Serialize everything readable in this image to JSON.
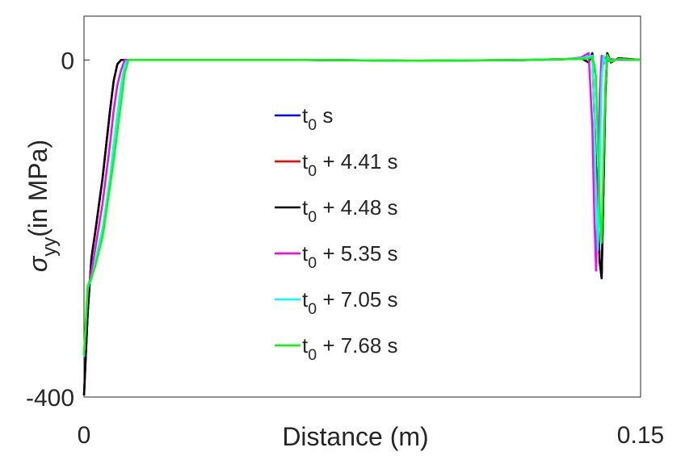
{
  "chart_data": {
    "type": "line",
    "xlabel": "Distance (m)",
    "ylabel": "σyy(in MPa)",
    "xlim": [
      0,
      0.15
    ],
    "xticks": [
      0,
      0.15
    ],
    "ylim": [
      -400,
      52
    ],
    "yticks": [
      -400,
      0
    ],
    "x": [
      0,
      0.001,
      0.002,
      0.003,
      0.005,
      0.007,
      0.008,
      0.009,
      0.01,
      0.011,
      0.012,
      0.013,
      0.03,
      0.06,
      0.09,
      0.12,
      0.13,
      0.134,
      0.136,
      0.137,
      0.1375,
      0.138,
      0.1385,
      0.139,
      0.1395,
      0.14,
      0.1405,
      0.141,
      0.142,
      0.144,
      0.15
    ],
    "series": [
      {
        "name": "t0 s",
        "color": "#0000ff",
        "values": [
          -398,
          -300,
          -235,
          -205,
          -140,
          -60,
          -25,
          -5,
          0,
          0,
          0,
          0,
          0,
          0,
          -1,
          0,
          1,
          2,
          -3,
          8,
          -60,
          -130,
          -190,
          -240,
          -259,
          -150,
          -40,
          8,
          -3,
          2,
          0
        ]
      },
      {
        "name": "t0 + 4.41 s",
        "color": "#ff0000",
        "values": [
          -398,
          -300,
          -235,
          -205,
          -140,
          -60,
          -25,
          -5,
          0,
          0,
          0,
          0,
          0,
          0,
          -1,
          0,
          1,
          2,
          -3,
          8,
          -60,
          -130,
          -190,
          -240,
          -259,
          -150,
          -40,
          8,
          -3,
          2,
          0
        ]
      },
      {
        "name": "t0 + 4.48 s",
        "color": "#000000",
        "values": [
          -398,
          -300,
          -235,
          -205,
          -140,
          -60,
          -25,
          -5,
          0,
          0,
          0,
          0,
          0,
          0,
          -1,
          0,
          1,
          2,
          -3,
          8,
          -60,
          -130,
          -190,
          -240,
          -259,
          -150,
          -40,
          8,
          -3,
          2,
          0
        ]
      },
      {
        "name": "t0 + 5.35 s",
        "color": "#ff00ff",
        "values": [
          -350,
          -275,
          -250,
          -225,
          -170,
          -100,
          -60,
          -30,
          -12,
          0,
          0,
          0,
          0,
          0,
          -1,
          0,
          1,
          3,
          8,
          -80,
          -180,
          -250,
          -150,
          -40,
          5,
          -5,
          3,
          -2,
          1,
          0,
          0
        ]
      },
      {
        "name": "t0 + 7.05 s",
        "color": "#00ffff",
        "values": [
          -352,
          -270,
          -260,
          -240,
          -200,
          -140,
          -100,
          -65,
          -30,
          -5,
          0,
          0,
          0,
          0,
          -1,
          0,
          1,
          2,
          4,
          5,
          -60,
          -160,
          -226,
          -120,
          -20,
          5,
          -3,
          2,
          -1,
          1,
          0
        ]
      },
      {
        "name": "t0 + 7.68 s",
        "color": "#00ff00",
        "values": [
          -350,
          -268,
          -258,
          -245,
          -210,
          -150,
          -120,
          -85,
          -50,
          -15,
          0,
          0,
          0,
          0,
          -1,
          0,
          1,
          1,
          2,
          3,
          -5,
          -20,
          -100,
          -180,
          -217,
          -120,
          -30,
          6,
          -2,
          1,
          0
        ]
      }
    ]
  }
}
